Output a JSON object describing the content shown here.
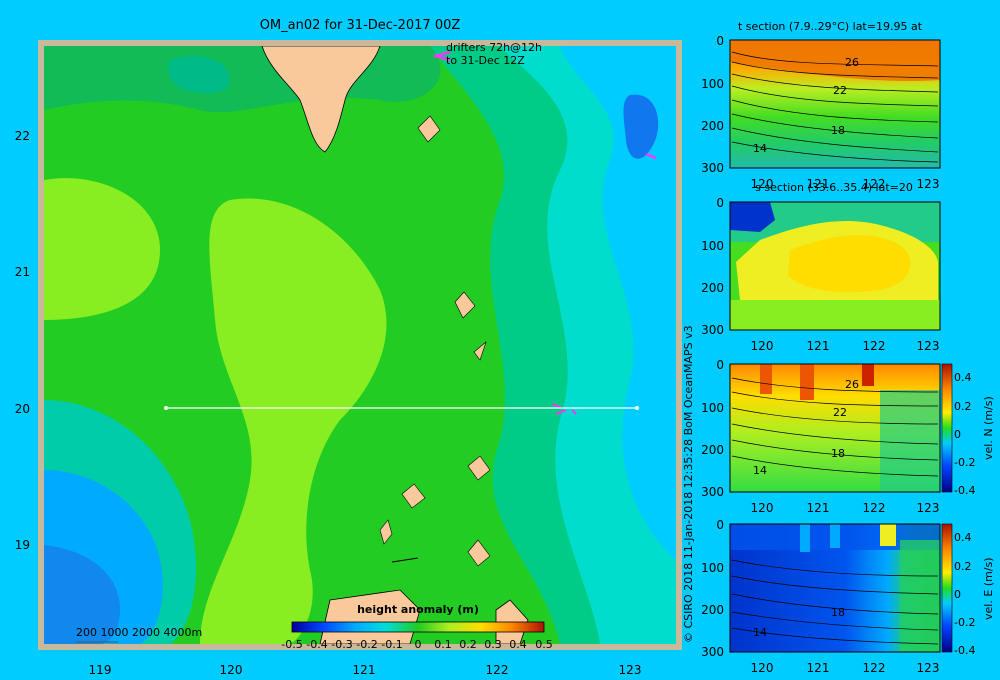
{
  "map": {
    "title": "OM_an02 for 31-Dec-2017 00Z",
    "lon_ticks": [
      "119",
      "120",
      "121",
      "122",
      "123"
    ],
    "lat_ticks": [
      "22",
      "21",
      "20",
      "19"
    ],
    "drifters_line1": "drifters 72h@12h",
    "drifters_line2": "to 31-Dec 12Z",
    "bathy_legend": "200  1000  2000  4000m",
    "section_lat": "20",
    "section_lon_start": "119.5",
    "section_lon_end": "123.2"
  },
  "colorbar": {
    "title": "height anomaly  (m)",
    "labels": [
      "-0.5",
      "-0.4",
      "-0.3",
      "-0.2",
      "-0.1",
      "0",
      "0.1",
      "0.2",
      "0.3",
      "0.4",
      "0.5"
    ]
  },
  "credit": "© CSIRO 2018   11-Jan-2018 12:35:28 BoM OceanMAPS v3",
  "sections": [
    {
      "title": "t section (7.9..29°C) lat=19.95 at",
      "depth_ticks": [
        "0",
        "100",
        "200",
        "300"
      ],
      "lon_ticks": [
        "120",
        "121",
        "122",
        "123"
      ],
      "contours": [
        "26",
        "22",
        "18",
        "14"
      ]
    },
    {
      "title": "s section (33.6..35.4) lat=20",
      "depth_ticks": [
        "0",
        "100",
        "200",
        "300"
      ],
      "lon_ticks": [
        "120",
        "121",
        "122",
        "123"
      ]
    },
    {
      "title": "",
      "depth_ticks": [
        "0",
        "100",
        "200",
        "300"
      ],
      "lon_ticks": [
        "120",
        "121",
        "122",
        "123"
      ],
      "contours": [
        "26",
        "22",
        "18",
        "14"
      ],
      "cbar_label": "vel. N (m/s)",
      "cbar_ticks": [
        "0.4",
        "0.2",
        "0",
        "-0.2",
        "-0.4"
      ]
    },
    {
      "title": "",
      "depth_ticks": [
        "0",
        "100",
        "200",
        "300"
      ],
      "lon_ticks": [
        "120",
        "121",
        "122",
        "123"
      ],
      "contours": [
        "18",
        "14"
      ],
      "cbar_label": "vel. E (m/s)",
      "cbar_ticks": [
        "0.4",
        "0.2",
        "0",
        "-0.2",
        "-0.4"
      ]
    }
  ],
  "colors": {
    "background": "#00ccff",
    "land": "#f9c99c",
    "frame": "#c8b89c",
    "drifter": "#ff33ff"
  }
}
